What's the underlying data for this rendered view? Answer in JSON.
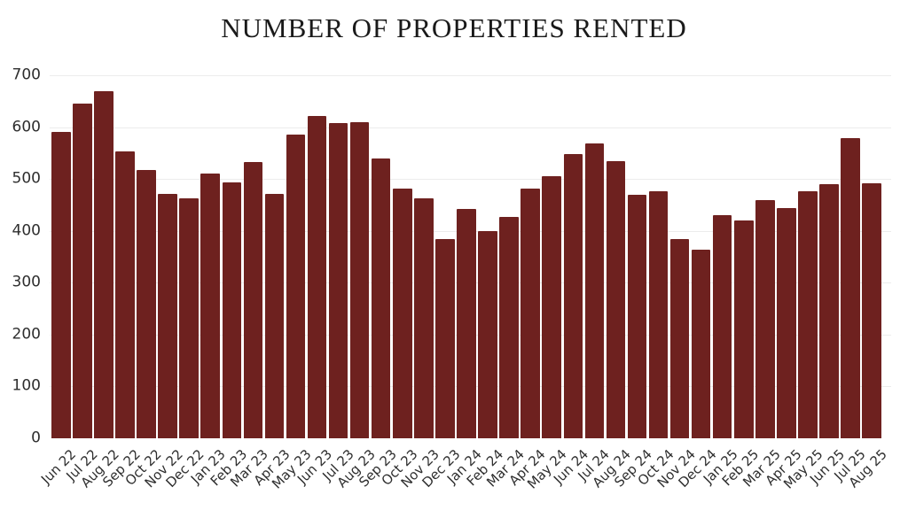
{
  "colors": {
    "bar": "#6e211f",
    "background": "#ffffff",
    "gridline": "#ececec",
    "axis_text": "#2e2e2e",
    "title_text": "#1a1a1a"
  },
  "chart_data": {
    "type": "bar",
    "title": "NUMBER OF PROPERTIES RENTED",
    "xlabel": "",
    "ylabel": "",
    "ylim": [
      0,
      700
    ],
    "ytick_step": 100,
    "yticks": [
      0,
      100,
      200,
      300,
      400,
      500,
      600,
      700
    ],
    "grid": true,
    "legend": false,
    "bar_color": "#6e211f",
    "categories": [
      "Jun 22",
      "Jul 22",
      "Aug 22",
      "Sep 22",
      "Oct 22",
      "Nov 22",
      "Dec 22",
      "Jan 23",
      "Feb 23",
      "Mar 23",
      "Apr 23",
      "May 23",
      "Jun 23",
      "Jul 23",
      "Aug 23",
      "Sep 23",
      "Oct 23",
      "Nov 23",
      "Dec 23",
      "Jan 24",
      "Feb 24",
      "Mar 24",
      "Apr 24",
      "May 24",
      "Jun 24",
      "Jul 24",
      "Aug 24",
      "Sep 24",
      "Oct 24",
      "Nov 24",
      "Dec 24",
      "Jan 25",
      "Feb 25",
      "Mar 25",
      "Apr 25",
      "May 25",
      "Jun 25",
      "Jul 25",
      "Aug 25"
    ],
    "values": [
      591,
      645,
      670,
      553,
      517,
      471,
      463,
      511,
      494,
      533,
      472,
      586,
      621,
      607,
      610,
      539,
      482,
      463,
      385,
      443,
      399,
      427,
      482,
      506,
      548,
      568,
      534,
      470,
      476,
      385,
      364,
      430,
      420,
      459,
      444,
      476,
      490,
      578,
      492
    ]
  }
}
